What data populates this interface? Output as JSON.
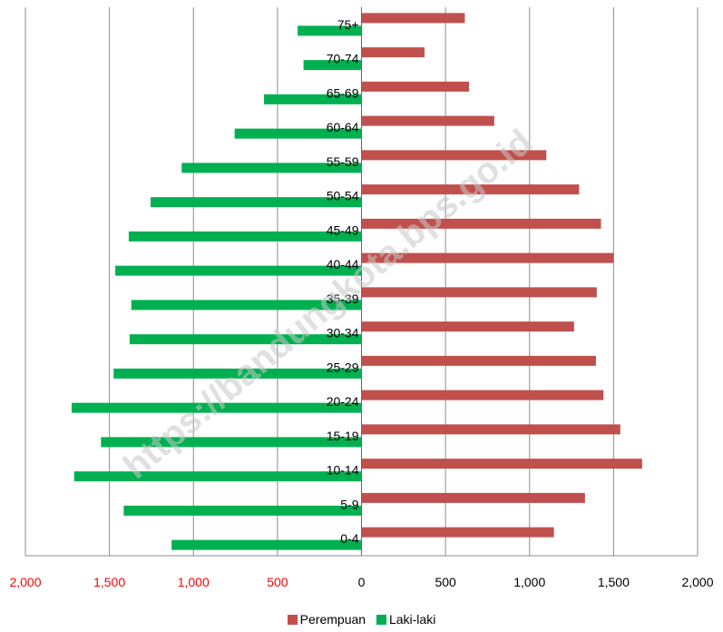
{
  "chart_data": {
    "type": "bar",
    "orientation": "horizontal",
    "layout": "population-pyramid",
    "categories": [
      "0-4",
      "5-9",
      "10-14",
      "15-19",
      "20-24",
      "25-29",
      "30-34",
      "35-39",
      "40-44",
      "45-49",
      "50-54",
      "55-59",
      "60-64",
      "65-69",
      "70-74",
      "75+"
    ],
    "series": [
      {
        "name": "Perempuan",
        "color": "#c0504d",
        "side": "right",
        "values": [
          1145,
          1330,
          1670,
          1540,
          1440,
          1395,
          1265,
          1400,
          1500,
          1425,
          1295,
          1100,
          790,
          640,
          375,
          615
        ]
      },
      {
        "name": "Laki-laki",
        "color": "#00b050",
        "side": "left",
        "values": [
          1130,
          1415,
          1710,
          1550,
          1725,
          1475,
          1380,
          1370,
          1465,
          1385,
          1255,
          1070,
          755,
          580,
          345,
          380
        ]
      }
    ],
    "x_ticks": [
      "2,000",
      "1,500",
      "1,000",
      "500",
      "0",
      "500",
      "1,000",
      "1,500",
      "2,000"
    ],
    "xlim": [
      -2000,
      2000
    ],
    "negative_tick_color": "#ff0000",
    "gridlines": "vertical",
    "legend_position": "bottom",
    "title": "",
    "xlabel": "",
    "ylabel": ""
  },
  "watermark": "https://bandungkota.bps.go.id"
}
